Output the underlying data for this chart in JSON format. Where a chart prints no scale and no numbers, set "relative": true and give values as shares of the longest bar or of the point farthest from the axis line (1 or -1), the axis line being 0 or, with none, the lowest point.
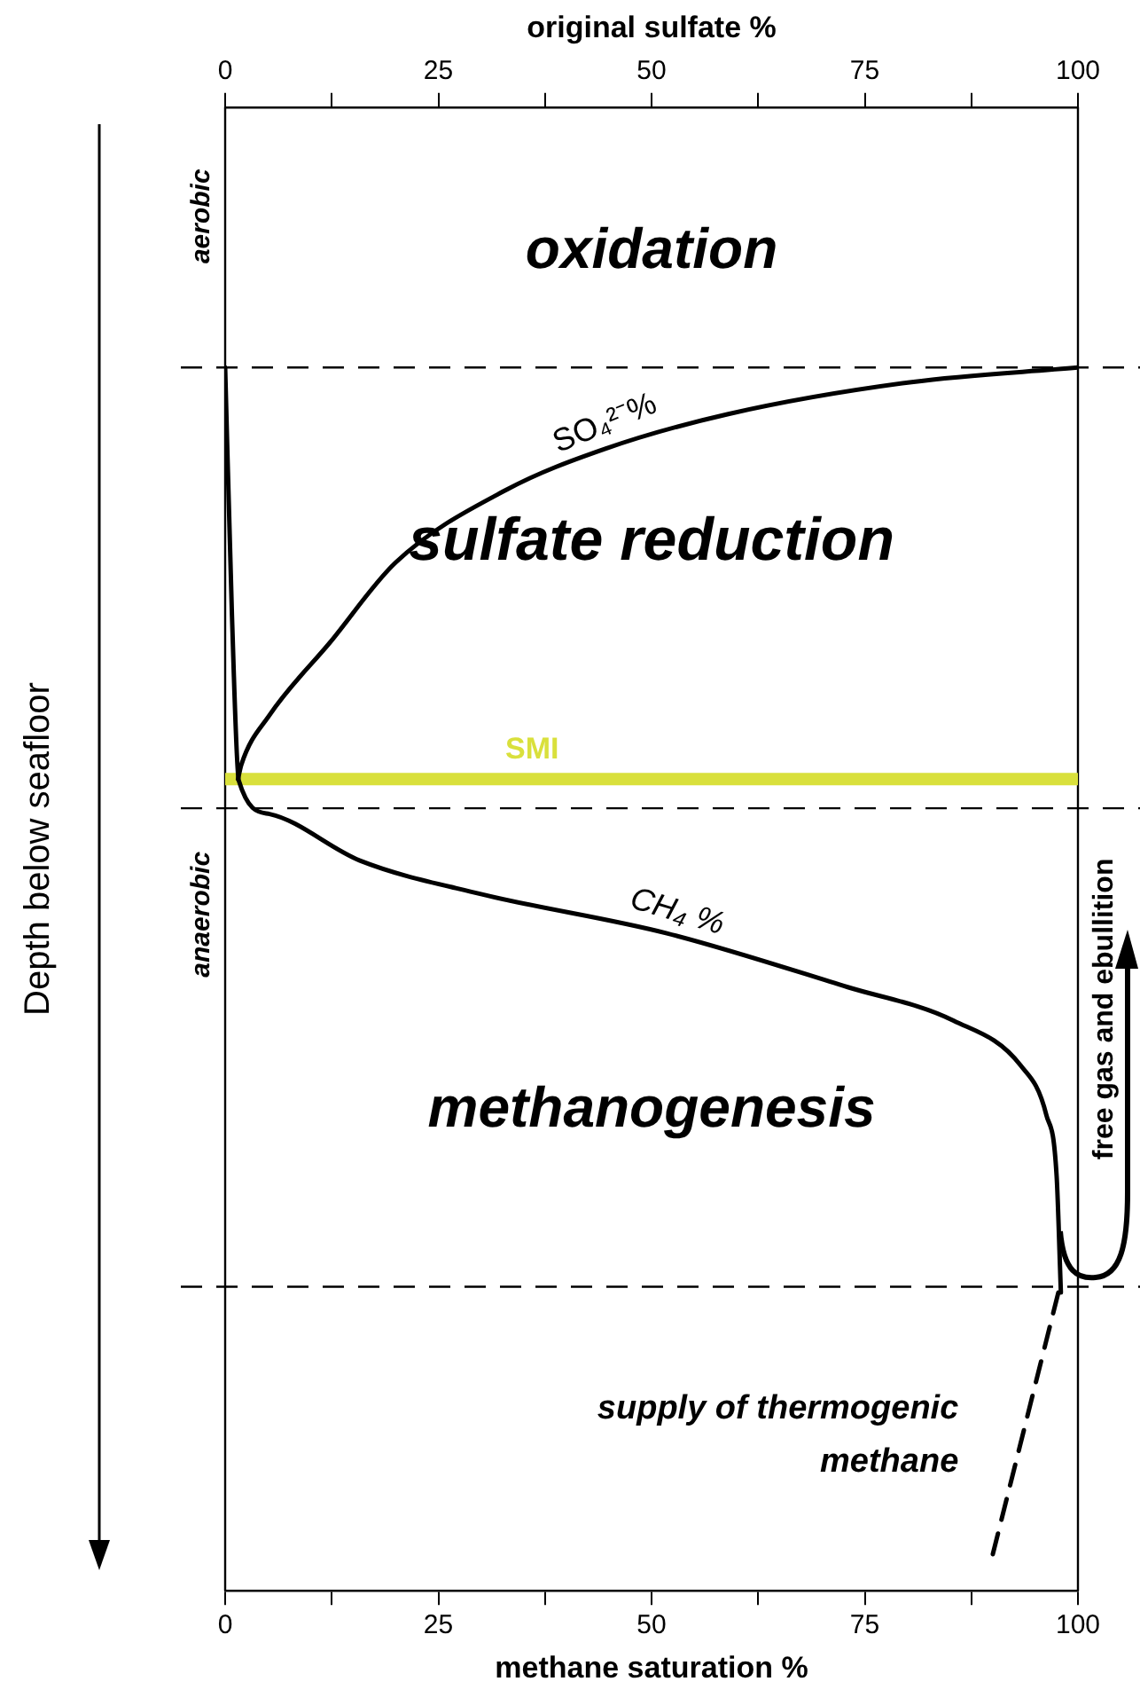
{
  "chart_data": {
    "type": "line",
    "relative": true,
    "xlabel": "methane saturation %",
    "x2label": "original sulfate %",
    "ylabel": "Depth below seafloor",
    "xlim": [
      0,
      100
    ],
    "xticks": [
      0,
      {
        "value": 12.5,
        "label": null
      },
      25,
      {
        "value": 37.5,
        "label": null
      },
      50,
      {
        "value": 62.5,
        "label": null
      },
      75,
      {
        "value": 87.5,
        "label": null
      },
      100
    ],
    "x2lim": [
      0,
      100
    ],
    "x2ticks": [
      0,
      {
        "value": 12.5,
        "label": null
      },
      25,
      {
        "value": 37.5,
        "label": null
      },
      50,
      {
        "value": 62.5,
        "label": null
      },
      75,
      {
        "value": 87.5,
        "label": null
      },
      100
    ],
    "marker": "none",
    "series": [
      {
        "name": "SO₄²⁻%",
        "color": "#000000",
        "axis": "x2",
        "x": [
          100,
          80.5,
          59,
          44.5,
          33,
          20,
          12.3,
          5.2,
          1.9,
          1.5
        ],
        "values": [
          -0.179,
          -0.189,
          -0.211,
          -0.235,
          -0.263,
          -0.313,
          -0.368,
          -0.418,
          -0.452,
          -0.462
        ]
      },
      {
        "name": "CH₄ %",
        "color": "#000000",
        "x": [
          0,
          0.8,
          1.6,
          5.2,
          15.8,
          30,
          51.8,
          73,
          85.4,
          93.3,
          96.3,
          97.5,
          98
        ],
        "values": [
          -0.179,
          -0.35,
          -0.463,
          -0.486,
          -0.518,
          -0.541,
          -0.568,
          -0.605,
          -0.628,
          -0.659,
          -0.693,
          -0.735,
          -0.815
        ]
      },
      {
        "color": "#000000",
        "line_style": "dashed",
        "x": [
          97.7,
          89.8
        ],
        "values": [
          -0.815,
          -1
        ]
      }
    ],
    "ref_lines": [
      {
        "axis": "y",
        "value": -0.179,
        "color": "#000000",
        "line_style": "dashed"
      },
      {
        "axis": "y",
        "value": -0.462,
        "label": "SMI",
        "color": "#d9e03c",
        "line_style": "solid"
      },
      {
        "axis": "y",
        "value": -0.482,
        "color": "#000000",
        "line_style": "dashed"
      },
      {
        "axis": "y",
        "value": -0.811,
        "color": "#000000",
        "line_style": "dashed"
      }
    ],
    "annotations": [
      "oxidation",
      "sulfate reduction",
      "methanogenesis",
      "aerobic",
      "anaerobic",
      "free gas and ebullition",
      "supply of thermogenic methane"
    ]
  }
}
